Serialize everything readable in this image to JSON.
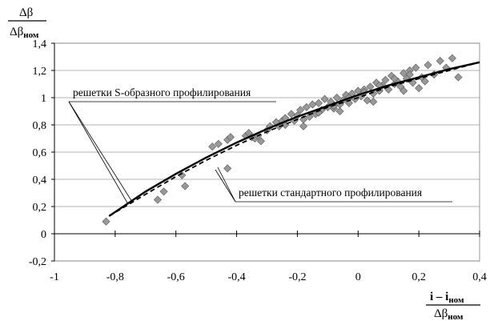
{
  "chart_data": {
    "type": "scatter",
    "xlim": [
      -1,
      0.4
    ],
    "ylim": [
      -0.2,
      1.4
    ],
    "x_ticks": [
      -1,
      -0.8,
      -0.6,
      -0.4,
      -0.2,
      0,
      0.2,
      0.4
    ],
    "y_ticks": [
      -0.2,
      0,
      0.2,
      0.4,
      0.6,
      0.8,
      1,
      1.2,
      1.4
    ],
    "x_tick_labels": [
      "-1",
      "-0,8",
      "-0,6",
      "-0,4",
      "-0,2",
      "0",
      "0,2",
      "0,4"
    ],
    "y_tick_labels": [
      "-0,2",
      "0",
      "0,2",
      "0,4",
      "0,6",
      "0,8",
      "1",
      "1,2",
      "1,4"
    ],
    "grid": "horizontal",
    "ylabel": {
      "numerator": "Δβ",
      "denominator_main": "Δβ",
      "denominator_sub": "ном"
    },
    "xlabel": {
      "numerator_a": "i – i",
      "numerator_sub": "ном",
      "denominator_main": "Δβ",
      "denominator_sub": "ном"
    },
    "annotations": [
      "решетки S-образного профилирования",
      "решетки стандартного профилирования"
    ],
    "series": [
      {
        "kind": "line",
        "style": "solid",
        "x": [
          -0.82,
          -0.7,
          -0.6,
          -0.5,
          -0.4,
          -0.3,
          -0.2,
          -0.1,
          0,
          0.1,
          0.2,
          0.3,
          0.4
        ],
        "y": [
          0.13,
          0.31,
          0.44,
          0.56,
          0.67,
          0.77,
          0.86,
          0.94,
          1.02,
          1.09,
          1.15,
          1.21,
          1.26
        ]
      },
      {
        "kind": "line",
        "style": "dashed",
        "x": [
          -0.82,
          -0.7,
          -0.6,
          -0.5,
          -0.4,
          -0.3,
          -0.2,
          -0.1,
          0,
          0.1,
          0.2,
          0.3,
          0.4
        ],
        "y": [
          0.13,
          0.29,
          0.42,
          0.54,
          0.65,
          0.75,
          0.84,
          0.93,
          1.0,
          1.08,
          1.14,
          1.2,
          1.26
        ]
      },
      {
        "kind": "scatter",
        "marker": "diamond",
        "color": "#999999",
        "x": [
          -0.83,
          -0.66,
          -0.64,
          -0.58,
          -0.57,
          -0.48,
          -0.46,
          -0.43,
          -0.43,
          -0.42,
          -0.37,
          -0.36,
          -0.35,
          -0.34,
          -0.33,
          -0.32,
          -0.3,
          -0.29,
          -0.27,
          -0.26,
          -0.25,
          -0.24,
          -0.22,
          -0.21,
          -0.2,
          -0.19,
          -0.18,
          -0.17,
          -0.16,
          -0.15,
          -0.14,
          -0.13,
          -0.12,
          -0.11,
          -0.1,
          -0.09,
          -0.08,
          -0.07,
          -0.06,
          -0.05,
          -0.04,
          -0.03,
          -0.02,
          -0.01,
          0,
          0.01,
          0.02,
          0.03,
          0.04,
          0.05,
          0.06,
          0.07,
          0.08,
          0.09,
          0.1,
          0.11,
          0.12,
          0.13,
          0.14,
          0.15,
          0.16,
          0.17,
          0.18,
          0.19,
          0.2,
          0.21,
          0.22,
          0.23,
          0.25,
          0.27,
          0.29,
          0.31,
          0.33,
          -0.18,
          -0.13,
          -0.08,
          -0.03,
          0.02,
          0.07,
          0.12,
          0.17,
          -0.24,
          -0.06,
          0.05,
          0.15
        ],
        "y": [
          0.09,
          0.25,
          0.31,
          0.43,
          0.35,
          0.64,
          0.66,
          0.69,
          0.48,
          0.71,
          0.72,
          0.74,
          0.71,
          0.7,
          0.72,
          0.68,
          0.76,
          0.79,
          0.82,
          0.79,
          0.83,
          0.85,
          0.88,
          0.83,
          0.87,
          0.91,
          0.79,
          0.93,
          0.86,
          0.95,
          0.88,
          0.96,
          0.91,
          0.99,
          0.93,
          0.97,
          0.92,
          1.0,
          0.95,
          0.98,
          1.02,
          0.96,
          1.03,
          0.99,
          1.05,
          1.01,
          1.06,
          0.98,
          1.08,
          1.03,
          1.11,
          1.05,
          1.09,
          1.13,
          1.06,
          1.16,
          1.1,
          1.12,
          1.08,
          1.18,
          1.14,
          1.2,
          1.11,
          1.22,
          1.07,
          1.15,
          1.12,
          1.24,
          1.17,
          1.27,
          1.22,
          1.29,
          1.15,
          0.84,
          0.89,
          0.94,
          1.0,
          1.04,
          1.09,
          1.14,
          1.17,
          0.8,
          0.9,
          0.97,
          1.05
        ]
      }
    ]
  }
}
